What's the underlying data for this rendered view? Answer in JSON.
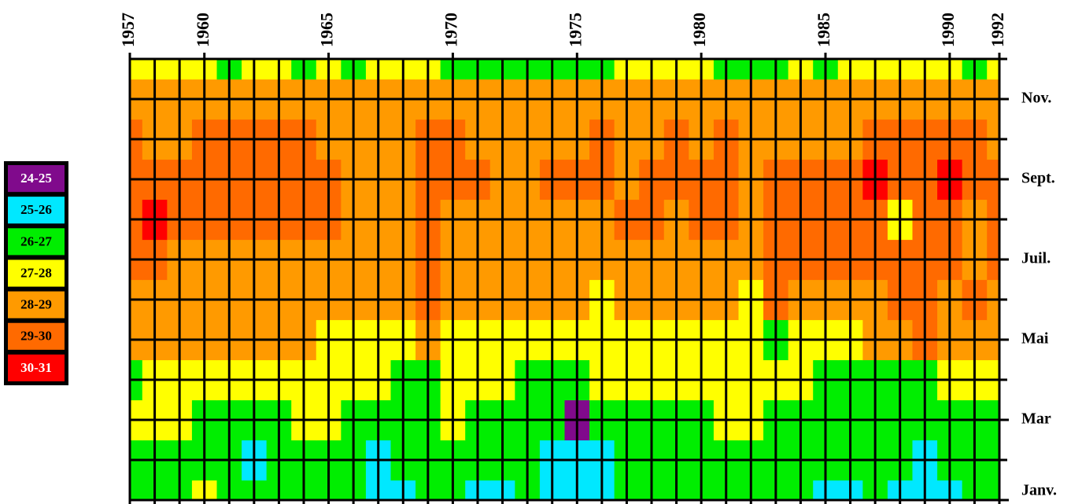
{
  "chart_data": {
    "type": "heatmap",
    "x": [
      1957,
      1958,
      1959,
      1960,
      1961,
      1962,
      1963,
      1964,
      1965,
      1966,
      1967,
      1968,
      1969,
      1970,
      1971,
      1972,
      1973,
      1974,
      1975,
      1976,
      1977,
      1978,
      1979,
      1980,
      1981,
      1982,
      1983,
      1984,
      1985,
      1986,
      1987,
      1988,
      1989,
      1990,
      1991,
      1992
    ],
    "y": [
      1,
      2,
      3,
      4,
      5,
      6,
      7,
      8,
      9,
      10,
      11,
      12
    ],
    "xlim": [
      1957,
      1992
    ],
    "ylim": [
      1,
      12
    ],
    "xticks": [
      1957,
      1960,
      1965,
      1970,
      1975,
      1980,
      1985,
      1990,
      1992
    ],
    "yticks": [
      {
        "value": 1,
        "label": "Janv."
      },
      {
        "value": 3,
        "label": "Mar"
      },
      {
        "value": 5,
        "label": "Mai"
      },
      {
        "value": 7,
        "label": "Juil."
      },
      {
        "value": 9,
        "label": "Sept."
      },
      {
        "value": 11,
        "label": "Nov."
      }
    ],
    "grid": true,
    "legend": {
      "position": "left",
      "bins": [
        {
          "label": "24-25",
          "min": 24,
          "max": 25,
          "color": "#800a8c"
        },
        {
          "label": "25-26",
          "min": 25,
          "max": 26,
          "color": "#00e8ff"
        },
        {
          "label": "26-27",
          "min": 26,
          "max": 27,
          "color": "#00ee00"
        },
        {
          "label": "27-28",
          "min": 27,
          "max": 28,
          "color": "#ffff00"
        },
        {
          "label": "28-29",
          "min": 28,
          "max": 29,
          "color": "#ff9a00"
        },
        {
          "label": "29-30",
          "min": 29,
          "max": 30,
          "color": "#ff6a00"
        },
        {
          "label": "30-31",
          "min": 30,
          "max": 31,
          "color": "#ff0000"
        }
      ]
    },
    "values": [
      [
        26.5,
        26.5,
        26.5,
        27.5,
        26.5,
        26.5,
        26.5,
        26.5,
        26.5,
        26.5,
        25.5,
        25.5,
        26.5,
        26.5,
        25.5,
        25.5,
        26.5,
        25.5,
        25.5,
        25.5,
        26.5,
        26.5,
        26.5,
        26.5,
        26.5,
        26.5,
        26.5,
        26.5,
        25.5,
        25.5,
        26.5,
        25.5,
        25.5,
        25.5,
        26.5,
        26.5
      ],
      [
        26.5,
        26.5,
        26.5,
        26.5,
        26.5,
        25.5,
        26.5,
        26.5,
        26.5,
        26.5,
        25.5,
        26.5,
        26.5,
        26.5,
        26.5,
        26.5,
        26.5,
        25.5,
        25.5,
        25.5,
        26.5,
        26.5,
        26.5,
        26.5,
        26.5,
        26.5,
        26.5,
        26.5,
        26.5,
        26.5,
        26.5,
        26.5,
        25.5,
        26.5,
        26.5,
        26.5
      ],
      [
        27.5,
        27.5,
        27.5,
        26.5,
        26.5,
        26.5,
        26.5,
        27.5,
        27.5,
        26.5,
        26.5,
        26.5,
        26.5,
        27.5,
        26.5,
        26.5,
        26.5,
        26.5,
        24.5,
        26.5,
        26.5,
        26.5,
        26.5,
        26.5,
        27.5,
        27.5,
        26.5,
        26.5,
        26.5,
        26.5,
        26.5,
        26.5,
        26.5,
        26.5,
        26.5,
        26.5
      ],
      [
        26.5,
        27.5,
        27.5,
        27.5,
        27.5,
        27.5,
        27.5,
        27.5,
        27.5,
        27.5,
        27.5,
        26.5,
        26.5,
        27.5,
        27.5,
        27.5,
        26.5,
        26.5,
        26.5,
        27.5,
        27.5,
        27.5,
        27.5,
        27.5,
        27.5,
        27.5,
        27.5,
        27.5,
        26.5,
        26.5,
        26.5,
        26.5,
        26.5,
        27.5,
        27.5,
        27.5
      ],
      [
        28.5,
        28.5,
        28.5,
        28.5,
        28.5,
        28.5,
        28.5,
        28.5,
        27.5,
        27.5,
        27.5,
        27.5,
        28.5,
        27.5,
        27.5,
        27.5,
        27.5,
        27.5,
        27.5,
        27.5,
        27.5,
        27.5,
        27.5,
        27.5,
        27.5,
        27.5,
        26.5,
        27.5,
        27.5,
        27.5,
        28.5,
        28.5,
        29.5,
        28.5,
        28.5,
        28.5
      ],
      [
        28.5,
        28.5,
        28.5,
        28.5,
        28.5,
        28.5,
        28.5,
        28.5,
        28.5,
        28.5,
        28.5,
        28.5,
        29.5,
        28.5,
        28.5,
        28.5,
        28.5,
        28.5,
        28.5,
        27.5,
        28.5,
        28.5,
        28.5,
        28.5,
        28.5,
        27.5,
        29.5,
        28.5,
        28.5,
        28.5,
        28.5,
        29.5,
        29.5,
        28.5,
        29.5,
        28.5
      ],
      [
        29.5,
        29.5,
        28.5,
        28.5,
        28.5,
        28.5,
        28.5,
        28.5,
        28.5,
        28.5,
        28.5,
        28.5,
        29.5,
        28.5,
        28.5,
        28.5,
        28.5,
        28.5,
        28.5,
        28.5,
        28.5,
        28.5,
        28.5,
        28.5,
        28.5,
        28.5,
        29.5,
        29.5,
        29.5,
        29.5,
        29.5,
        29.5,
        29.5,
        29.5,
        28.5,
        29.5
      ],
      [
        29.5,
        30.5,
        29.5,
        29.5,
        29.5,
        29.5,
        29.5,
        29.5,
        29.5,
        28.5,
        28.5,
        28.5,
        29.5,
        28.5,
        28.5,
        28.5,
        28.5,
        28.5,
        28.5,
        28.5,
        29.5,
        29.5,
        28.5,
        29.5,
        29.5,
        28.5,
        29.5,
        29.5,
        29.5,
        29.5,
        29.5,
        27.5,
        29.5,
        29.5,
        28.5,
        29.5
      ],
      [
        29.5,
        29.5,
        29.5,
        29.5,
        29.5,
        29.5,
        29.5,
        29.5,
        29.5,
        28.5,
        28.5,
        28.5,
        29.5,
        29.5,
        29.5,
        28.5,
        28.5,
        29.5,
        29.5,
        29.5,
        28.5,
        29.5,
        29.5,
        29.5,
        29.5,
        28.5,
        29.5,
        29.5,
        29.5,
        29.5,
        30.5,
        29.5,
        29.5,
        30.5,
        29.5,
        29.5
      ],
      [
        29.5,
        28.5,
        28.5,
        29.5,
        29.5,
        29.5,
        29.5,
        29.5,
        28.5,
        28.5,
        28.5,
        28.5,
        29.5,
        29.5,
        28.5,
        28.5,
        28.5,
        28.5,
        28.5,
        29.5,
        28.5,
        28.5,
        29.5,
        28.5,
        29.5,
        28.5,
        28.5,
        28.5,
        28.5,
        28.5,
        29.5,
        29.5,
        29.5,
        29.5,
        29.5,
        28.5
      ],
      [
        28.5,
        28.5,
        28.5,
        28.5,
        28.5,
        28.5,
        28.5,
        28.5,
        28.5,
        28.5,
        28.5,
        28.5,
        28.5,
        28.5,
        28.5,
        28.5,
        28.5,
        28.5,
        28.5,
        28.5,
        28.5,
        28.5,
        28.5,
        28.5,
        28.5,
        28.5,
        28.5,
        28.5,
        28.5,
        28.5,
        28.5,
        28.5,
        28.5,
        28.5,
        28.5,
        28.5
      ],
      [
        27.5,
        27.5,
        27.5,
        27.5,
        26.5,
        27.5,
        27.5,
        26.5,
        27.5,
        26.5,
        27.5,
        27.5,
        27.5,
        26.5,
        26.5,
        26.5,
        26.5,
        26.5,
        26.5,
        26.5,
        27.5,
        27.5,
        27.5,
        27.5,
        26.5,
        26.5,
        26.5,
        27.5,
        26.5,
        27.5,
        27.5,
        27.5,
        27.5,
        27.5,
        26.5,
        27.5
      ]
    ]
  }
}
